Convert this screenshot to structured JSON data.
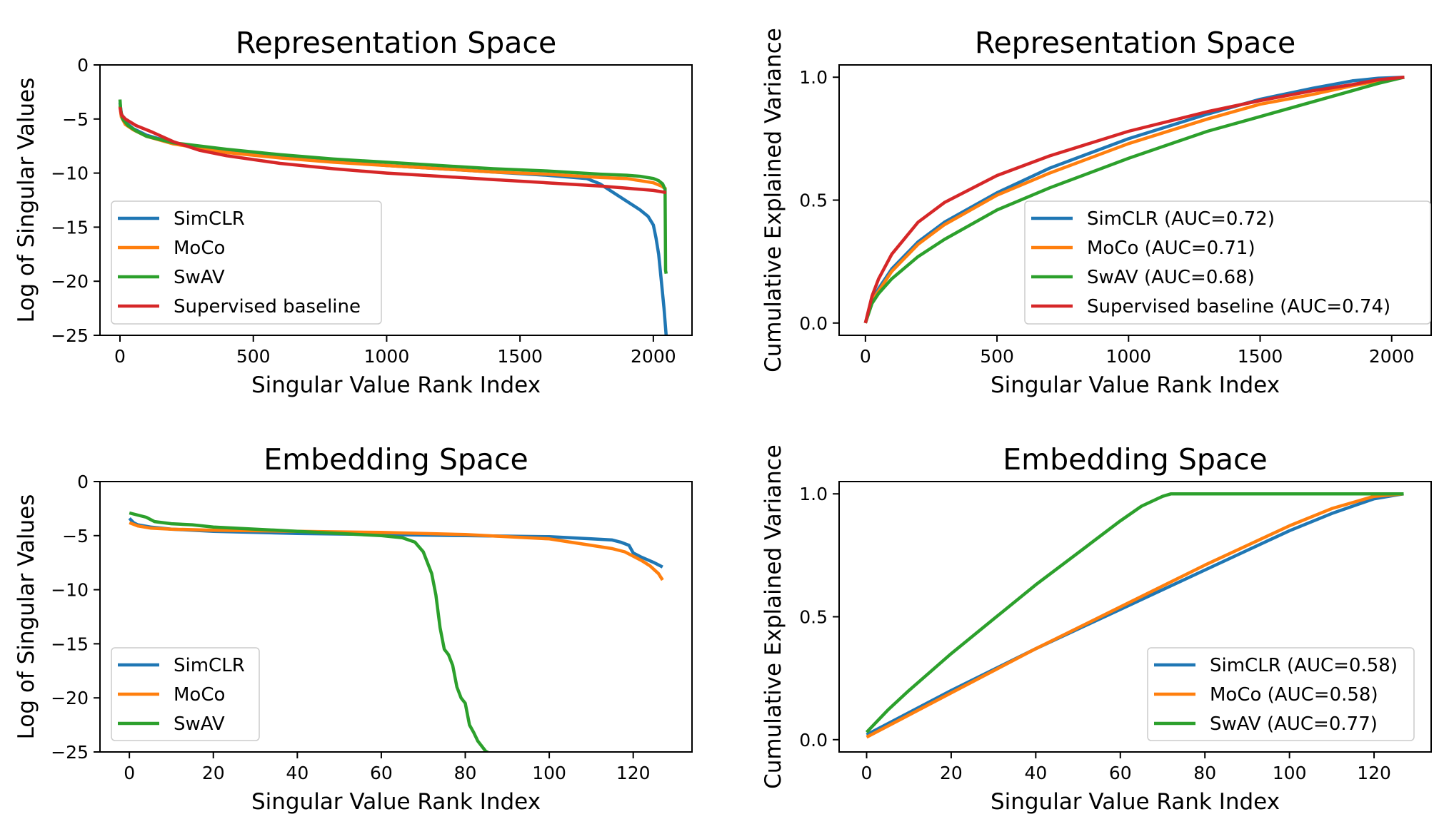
{
  "colors": {
    "SimCLR": "#1f77b4",
    "MoCo": "#ff7f0e",
    "SwAV": "#2ca02c",
    "Supervised": "#d62728"
  },
  "chart_data": [
    {
      "type": "line",
      "title": "Representation Space",
      "xlabel": "Singular Value Rank Index",
      "ylabel": "Log of Singular Values",
      "xlim": [
        -75,
        2145
      ],
      "ylim": [
        -25,
        0
      ],
      "xticks": [
        0,
        500,
        1000,
        1500,
        2000
      ],
      "yticks": [
        0,
        -5,
        -10,
        -15,
        -20,
        -25
      ],
      "ytick_labels": [
        "0",
        "−5",
        "−10",
        "−15",
        "−20",
        "−25"
      ],
      "legend": "lower-left",
      "series": [
        {
          "name": "SimCLR",
          "x": [
            0,
            5,
            20,
            50,
            100,
            200,
            400,
            600,
            800,
            1000,
            1200,
            1400,
            1600,
            1750,
            1800,
            1850,
            1900,
            1950,
            1980,
            2000,
            2010,
            2020,
            2030,
            2040,
            2048
          ],
          "y": [
            -3.5,
            -4.5,
            -5.3,
            -5.9,
            -6.5,
            -7.2,
            -8.0,
            -8.5,
            -8.9,
            -9.3,
            -9.6,
            -9.9,
            -10.2,
            -10.5,
            -11.0,
            -11.8,
            -12.6,
            -13.4,
            -14.0,
            -14.8,
            -16.0,
            -17.5,
            -20.0,
            -22.5,
            -25
          ]
        },
        {
          "name": "MoCo",
          "x": [
            0,
            5,
            20,
            50,
            100,
            200,
            400,
            600,
            800,
            1000,
            1200,
            1400,
            1600,
            1800,
            1900,
            1950,
            2000,
            2030,
            2048
          ],
          "y": [
            -3.8,
            -4.8,
            -5.5,
            -6.0,
            -6.6,
            -7.3,
            -8.1,
            -8.6,
            -9.0,
            -9.3,
            -9.6,
            -9.9,
            -10.1,
            -10.4,
            -10.5,
            -10.7,
            -10.9,
            -11.2,
            -11.5
          ]
        },
        {
          "name": "SwAV",
          "x": [
            0,
            3,
            10,
            30,
            60,
            100,
            200,
            400,
            600,
            800,
            1000,
            1200,
            1400,
            1600,
            1800,
            1900,
            1950,
            2000,
            2020,
            2035,
            2044,
            2046,
            2048
          ],
          "y": [
            -3.2,
            -4.2,
            -5.0,
            -5.6,
            -6.1,
            -6.6,
            -7.2,
            -7.8,
            -8.3,
            -8.7,
            -9.0,
            -9.3,
            -9.6,
            -9.8,
            -10.1,
            -10.2,
            -10.3,
            -10.5,
            -10.7,
            -11.0,
            -11.5,
            -19.0,
            -19.3
          ]
        },
        {
          "name": "Supervised baseline",
          "x": [
            0,
            5,
            20,
            60,
            120,
            200,
            300,
            400,
            600,
            800,
            1000,
            1200,
            1400,
            1600,
            1800,
            1900,
            2000,
            2048
          ],
          "y": [
            -3.9,
            -4.6,
            -5.0,
            -5.6,
            -6.2,
            -7.1,
            -7.9,
            -8.4,
            -9.1,
            -9.6,
            -10.0,
            -10.3,
            -10.6,
            -10.9,
            -11.2,
            -11.4,
            -11.6,
            -11.8
          ]
        }
      ]
    },
    {
      "type": "line",
      "title": "Representation Space",
      "xlabel": "Singular Value Rank Index",
      "ylabel": "Cumulative Explained Variance",
      "xlim": [
        -100,
        2150
      ],
      "ylim": [
        -0.05,
        1.05
      ],
      "xticks": [
        0,
        500,
        1000,
        1500,
        2000
      ],
      "yticks": [
        0.0,
        0.5,
        1.0
      ],
      "ytick_labels": [
        "0.0",
        "0.5",
        "1.0"
      ],
      "legend": "lower-right",
      "series": [
        {
          "name": "SimCLR (AUC=0.72)",
          "x": [
            0,
            25,
            50,
            100,
            200,
            300,
            500,
            700,
            1000,
            1300,
            1500,
            1700,
            1850,
            1950,
            2048
          ],
          "y": [
            0.0,
            0.09,
            0.14,
            0.22,
            0.33,
            0.41,
            0.53,
            0.63,
            0.75,
            0.85,
            0.91,
            0.955,
            0.985,
            0.996,
            1.0
          ]
        },
        {
          "name": "MoCo (AUC=0.71)",
          "x": [
            0,
            25,
            50,
            100,
            200,
            300,
            500,
            700,
            1000,
            1300,
            1500,
            1700,
            1850,
            1950,
            2048
          ],
          "y": [
            0.0,
            0.09,
            0.13,
            0.21,
            0.32,
            0.4,
            0.52,
            0.61,
            0.73,
            0.83,
            0.89,
            0.93,
            0.965,
            0.985,
            1.0
          ]
        },
        {
          "name": "SwAV (AUC=0.68)",
          "x": [
            0,
            25,
            50,
            100,
            200,
            300,
            500,
            700,
            1000,
            1300,
            1500,
            1700,
            1850,
            1950,
            2048
          ],
          "y": [
            0.0,
            0.08,
            0.12,
            0.18,
            0.27,
            0.34,
            0.46,
            0.55,
            0.67,
            0.78,
            0.84,
            0.9,
            0.945,
            0.975,
            1.0
          ]
        },
        {
          "name": "Supervised baseline (AUC=0.74)",
          "x": [
            0,
            25,
            50,
            100,
            200,
            300,
            500,
            700,
            1000,
            1300,
            1500,
            1700,
            1850,
            1950,
            2048
          ],
          "y": [
            0.0,
            0.11,
            0.18,
            0.28,
            0.41,
            0.49,
            0.6,
            0.68,
            0.78,
            0.86,
            0.905,
            0.945,
            0.97,
            0.99,
            1.0
          ]
        }
      ]
    },
    {
      "type": "line",
      "title": "Embedding Space",
      "xlabel": "Singular Value Rank Index",
      "ylabel": "Log of Singular Values",
      "xlim": [
        -7,
        134
      ],
      "ylim": [
        -25,
        0
      ],
      "xticks": [
        0,
        20,
        40,
        60,
        80,
        100,
        120
      ],
      "yticks": [
        0,
        -5,
        -10,
        -15,
        -20,
        -25
      ],
      "ytick_labels": [
        "0",
        "−5",
        "−10",
        "−15",
        "−20",
        "−25"
      ],
      "legend": "lower-left",
      "series": [
        {
          "name": "SimCLR",
          "x": [
            0,
            1,
            2,
            5,
            10,
            20,
            40,
            60,
            80,
            100,
            110,
            115,
            117,
            119,
            120,
            122,
            125,
            127
          ],
          "y": [
            -3.4,
            -3.8,
            -4.0,
            -4.2,
            -4.4,
            -4.6,
            -4.8,
            -4.9,
            -5.0,
            -5.1,
            -5.3,
            -5.4,
            -5.6,
            -5.9,
            -6.6,
            -7.0,
            -7.5,
            -7.9
          ]
        },
        {
          "name": "MoCo",
          "x": [
            0,
            2,
            5,
            10,
            20,
            40,
            60,
            80,
            100,
            105,
            110,
            115,
            118,
            120,
            122,
            124,
            126,
            127
          ],
          "y": [
            -3.8,
            -4.1,
            -4.3,
            -4.4,
            -4.5,
            -4.6,
            -4.7,
            -4.9,
            -5.3,
            -5.6,
            -5.9,
            -6.2,
            -6.5,
            -6.9,
            -7.3,
            -7.8,
            -8.5,
            -9.1
          ]
        },
        {
          "name": "SwAV",
          "x": [
            0,
            2,
            4,
            6,
            10,
            15,
            20,
            30,
            40,
            50,
            60,
            65,
            68,
            70,
            72,
            73,
            74,
            75,
            76,
            77,
            78,
            79,
            80,
            81,
            82,
            83,
            84,
            85,
            85.5
          ],
          "y": [
            -2.9,
            -3.1,
            -3.3,
            -3.7,
            -3.9,
            -4.0,
            -4.2,
            -4.4,
            -4.6,
            -4.8,
            -5.0,
            -5.2,
            -5.6,
            -6.5,
            -8.5,
            -10.5,
            -13.5,
            -15.5,
            -16.0,
            -17.0,
            -19.0,
            -20.0,
            -20.5,
            -22.5,
            -23.2,
            -24.0,
            -24.5,
            -25.0,
            -25.0
          ]
        }
      ]
    },
    {
      "type": "line",
      "title": "Embedding Space",
      "xlabel": "Singular Value Rank Index",
      "ylabel": "Cumulative Explained Variance",
      "xlim": [
        -6.5,
        133.5
      ],
      "ylim": [
        -0.05,
        1.05
      ],
      "xticks": [
        0,
        20,
        40,
        60,
        80,
        100,
        120
      ],
      "yticks": [
        0.0,
        0.5,
        1.0
      ],
      "ytick_labels": [
        "0.0",
        "0.5",
        "1.0"
      ],
      "legend": "lower-right",
      "series": [
        {
          "name": "SimCLR (AUC=0.58)",
          "x": [
            0,
            20,
            40,
            60,
            80,
            100,
            110,
            120,
            127
          ],
          "y": [
            0.02,
            0.2,
            0.37,
            0.53,
            0.69,
            0.85,
            0.92,
            0.98,
            1.0
          ]
        },
        {
          "name": "MoCo (AUC=0.58)",
          "x": [
            0,
            20,
            40,
            60,
            80,
            100,
            110,
            120,
            127
          ],
          "y": [
            0.01,
            0.19,
            0.37,
            0.54,
            0.71,
            0.87,
            0.94,
            0.99,
            1.0
          ]
        },
        {
          "name": "SwAV (AUC=0.77)",
          "x": [
            0,
            5,
            10,
            20,
            30,
            40,
            50,
            60,
            65,
            70,
            72,
            75,
            80,
            100,
            127
          ],
          "y": [
            0.03,
            0.12,
            0.2,
            0.35,
            0.49,
            0.63,
            0.76,
            0.89,
            0.95,
            0.99,
            1.0,
            1.0,
            1.0,
            1.0,
            1.0
          ]
        }
      ]
    }
  ]
}
